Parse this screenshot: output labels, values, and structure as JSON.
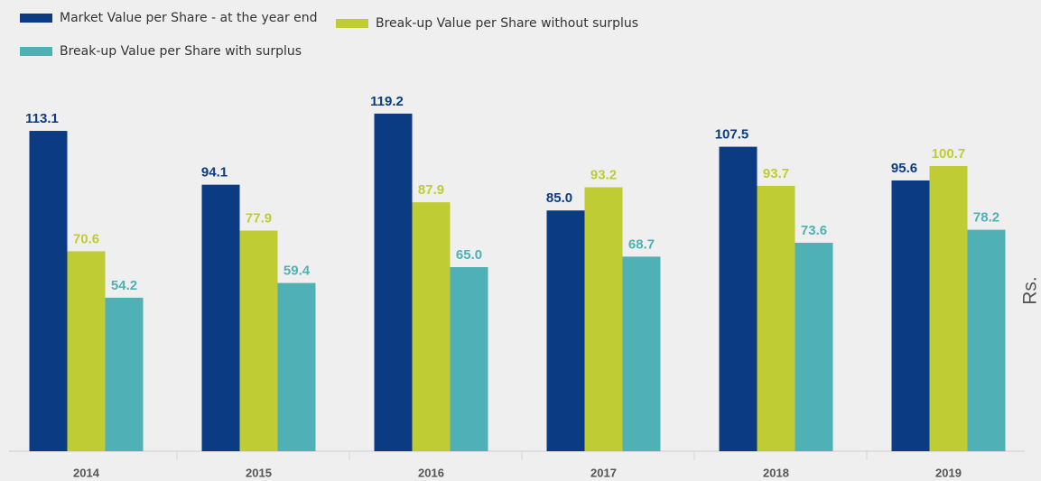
{
  "chart_data": {
    "type": "bar",
    "y_label": "Rs.",
    "categories": [
      "2014",
      "2015",
      "2016",
      "2017",
      "2018",
      "2019"
    ],
    "series": [
      {
        "name": "Market Value per Share - at the year end",
        "color": "#0b3b82",
        "values": [
          113.1,
          94.1,
          119.2,
          85.0,
          107.5,
          95.6
        ],
        "value_labels": [
          "113.1",
          "94.1",
          "119.2",
          "85.0",
          "107.5",
          "95.6"
        ]
      },
      {
        "name": "Break-up Value per Share without surplus",
        "color": "#bfcc33",
        "values": [
          70.6,
          77.9,
          87.9,
          93.2,
          93.7,
          100.7
        ],
        "value_labels": [
          "70.6",
          "77.9",
          "87.9",
          "93.2",
          "93.7",
          "100.7"
        ]
      },
      {
        "name": "Break-up Value per Share with surplus",
        "color": "#4fb1b5",
        "values": [
          54.2,
          59.4,
          65.0,
          68.7,
          73.6,
          78.2
        ],
        "value_labels": [
          "54.2",
          "59.4",
          "65.0",
          "68.7",
          "73.6",
          "78.2"
        ]
      }
    ],
    "ylim": [
      0,
      130
    ]
  }
}
